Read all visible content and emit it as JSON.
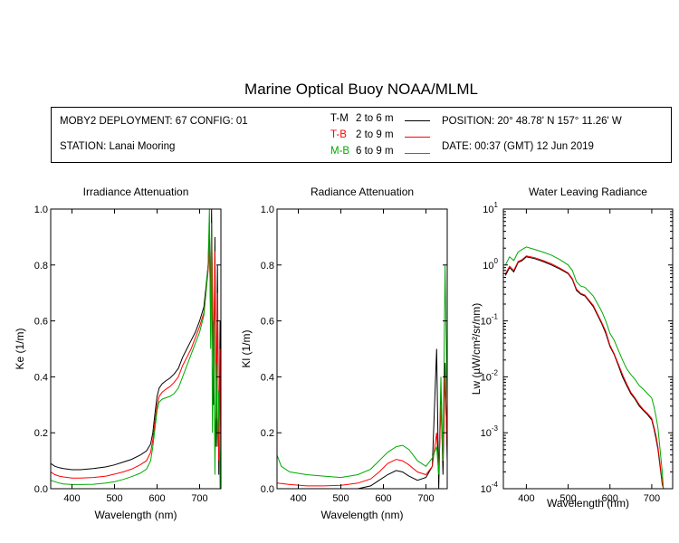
{
  "page": {
    "title": "Marine Optical Buoy NOAA/MLML"
  },
  "info": {
    "deployment": "MOBY2 DEPLOYMENT: 67 CONFIG: 01",
    "station": "STATION: Lanai Mooring",
    "position": "POSITION: 20° 48.78' N   157° 11.26' W",
    "date": "DATE: 00:37 (GMT) 12 Jun 2019",
    "legend": [
      {
        "label": "T-M",
        "range": "2 to 6  m",
        "color": "#000000"
      },
      {
        "label": "T-B",
        "range": "2 to 9  m",
        "color": "#ff0000"
      },
      {
        "label": "M-B",
        "range": "6 to 9  m",
        "color": "#00aa00"
      }
    ]
  },
  "colors": {
    "T-M": "#000000",
    "T-B": "#ff0000",
    "M-B": "#00aa00"
  },
  "chart_data": [
    {
      "type": "line",
      "title": "Irradiance Attenuation",
      "xlabel": "Wavelength (nm)",
      "ylabel": "Ke  (1/m)",
      "xlim": [
        350,
        750
      ],
      "ylim": [
        0,
        1.0
      ],
      "xticks": [
        400,
        500,
        600,
        700
      ],
      "xtick_labels": [
        "400",
        "500",
        "600",
        "700"
      ],
      "yticks": [
        0,
        0.2,
        0.4,
        0.6,
        0.8,
        1.0
      ],
      "ytick_labels": [
        "0.0",
        "0.2",
        "0.4",
        "0.6",
        "0.8",
        "1.0"
      ],
      "log": false,
      "series": [
        {
          "name": "T-M",
          "color": "#000000",
          "x": [
            350,
            360,
            370,
            380,
            400,
            420,
            450,
            480,
            500,
            520,
            540,
            560,
            575,
            585,
            590,
            595,
            600,
            605,
            612,
            620,
            630,
            640,
            650,
            660,
            670,
            680,
            690,
            700,
            710,
            715,
            720,
            723,
            726,
            728,
            730,
            733,
            736,
            739,
            742,
            745,
            748,
            750
          ],
          "y": [
            0.09,
            0.08,
            0.075,
            0.072,
            0.068,
            0.068,
            0.072,
            0.078,
            0.085,
            0.095,
            0.105,
            0.12,
            0.135,
            0.16,
            0.2,
            0.27,
            0.33,
            0.36,
            0.375,
            0.385,
            0.395,
            0.41,
            0.43,
            0.47,
            0.5,
            0.53,
            0.56,
            0.6,
            0.65,
            0.72,
            0.8,
            0.95,
            0.6,
            1.0,
            0.7,
            0.3,
            0.9,
            0.15,
            0.8,
            0.05,
            0.6,
            0.1
          ]
        },
        {
          "name": "T-B",
          "color": "#ff0000",
          "x": [
            350,
            360,
            370,
            380,
            400,
            420,
            450,
            480,
            500,
            520,
            540,
            560,
            575,
            585,
            590,
            595,
            600,
            605,
            612,
            620,
            630,
            640,
            650,
            660,
            670,
            680,
            690,
            700,
            710,
            715,
            720,
            723,
            726,
            728,
            730,
            733,
            736,
            739,
            742,
            745,
            748,
            750
          ],
          "y": [
            0.06,
            0.05,
            0.045,
            0.042,
            0.038,
            0.038,
            0.04,
            0.045,
            0.052,
            0.06,
            0.07,
            0.085,
            0.1,
            0.13,
            0.175,
            0.24,
            0.3,
            0.33,
            0.345,
            0.355,
            0.365,
            0.38,
            0.4,
            0.44,
            0.47,
            0.5,
            0.54,
            0.58,
            0.63,
            0.7,
            0.78,
            0.85,
            0.65,
            0.9,
            0.75,
            0.4,
            0.85,
            0.25,
            0.7,
            0.1,
            0.5,
            0.1
          ]
        },
        {
          "name": "M-B",
          "color": "#00aa00",
          "x": [
            350,
            360,
            370,
            380,
            400,
            420,
            450,
            480,
            500,
            520,
            540,
            560,
            575,
            585,
            590,
            595,
            600,
            605,
            612,
            620,
            630,
            640,
            650,
            660,
            670,
            680,
            690,
            700,
            710,
            715,
            720,
            723,
            726,
            728,
            730,
            733,
            736,
            739,
            742,
            745,
            748,
            750
          ],
          "y": [
            0.03,
            0.025,
            0.02,
            0.017,
            0.015,
            0.015,
            0.016,
            0.02,
            0.025,
            0.033,
            0.043,
            0.055,
            0.07,
            0.1,
            0.15,
            0.215,
            0.28,
            0.31,
            0.32,
            0.325,
            0.33,
            0.34,
            0.36,
            0.4,
            0.44,
            0.48,
            0.52,
            0.56,
            0.62,
            0.7,
            0.8,
            1.0,
            0.5,
            0.95,
            0.2,
            0.6,
            0.05,
            0.45,
            0.15,
            0.35,
            0.0,
            0.2
          ]
        }
      ]
    },
    {
      "type": "line",
      "title": "Radiance Attenuation",
      "xlabel": "Wavelength (nm)",
      "ylabel": "Kl  (1/m)",
      "xlim": [
        350,
        750
      ],
      "ylim": [
        0,
        1.0
      ],
      "xticks": [
        400,
        500,
        600,
        700
      ],
      "xtick_labels": [
        "400",
        "500",
        "600",
        "700"
      ],
      "yticks": [
        0,
        0.2,
        0.4,
        0.6,
        0.8,
        1.0
      ],
      "ytick_labels": [
        "0.0",
        "0.2",
        "0.4",
        "0.6",
        "0.8",
        "1.0"
      ],
      "log": false,
      "series": [
        {
          "name": "T-M",
          "color": "#000000",
          "x": [
            350,
            380,
            420,
            460,
            500,
            540,
            570,
            590,
            610,
            630,
            645,
            660,
            680,
            700,
            715,
            725,
            730,
            735,
            740,
            745,
            750
          ],
          "y": [
            0.0,
            0.0,
            0.0,
            0.0,
            0.0,
            0.0,
            0.01,
            0.03,
            0.05,
            0.065,
            0.06,
            0.045,
            0.03,
            0.04,
            0.08,
            0.5,
            0.0,
            0.35,
            0.05,
            0.45,
            0.1
          ]
        },
        {
          "name": "T-B",
          "color": "#ff0000",
          "x": [
            350,
            380,
            420,
            460,
            500,
            540,
            570,
            590,
            610,
            630,
            645,
            660,
            680,
            700,
            715,
            725,
            730,
            735,
            740,
            745,
            750
          ],
          "y": [
            0.02,
            0.015,
            0.01,
            0.01,
            0.012,
            0.02,
            0.035,
            0.06,
            0.09,
            0.105,
            0.1,
            0.085,
            0.06,
            0.05,
            0.08,
            0.2,
            0.05,
            0.3,
            0.1,
            0.4,
            0.15
          ]
        },
        {
          "name": "M-B",
          "color": "#00aa00",
          "x": [
            350,
            360,
            380,
            420,
            460,
            500,
            540,
            570,
            590,
            610,
            630,
            645,
            660,
            680,
            700,
            715,
            725,
            730,
            735,
            740,
            745,
            750
          ],
          "y": [
            0.12,
            0.08,
            0.06,
            0.05,
            0.045,
            0.04,
            0.05,
            0.07,
            0.1,
            0.13,
            0.15,
            0.155,
            0.14,
            0.1,
            0.08,
            0.11,
            0.15,
            0.05,
            0.4,
            0.1,
            0.8,
            0.3
          ]
        }
      ]
    },
    {
      "type": "line",
      "title": "Water Leaving Radiance",
      "xlabel": "Wavelength (nm)",
      "ylabel": "Lw  (µW/cm²/sr/nm)",
      "xlim": [
        345,
        750
      ],
      "ylim": [
        0.0001,
        10
      ],
      "log": true,
      "xticks": [
        400,
        500,
        600,
        700
      ],
      "xtick_labels": [
        "400",
        "500",
        "600",
        "700"
      ],
      "yticks": [
        0.0001,
        0.001,
        0.01,
        0.1,
        1,
        10
      ],
      "ytick_bases": [
        "10",
        "10",
        "10",
        "10",
        "10",
        "10"
      ],
      "ytick_exps": [
        "-4",
        "-3",
        "-2",
        "-1",
        "0",
        "1"
      ],
      "series": [
        {
          "name": "T-M",
          "color": "#000000",
          "x": [
            350,
            360,
            370,
            380,
            390,
            400,
            420,
            440,
            460,
            480,
            500,
            510,
            520,
            530,
            540,
            560,
            580,
            590,
            600,
            610,
            620,
            630,
            640,
            650,
            660,
            670,
            680,
            690,
            700,
            705,
            710,
            715,
            720,
            725,
            728
          ],
          "y": [
            0.65,
            0.9,
            0.75,
            1.1,
            1.2,
            1.4,
            1.3,
            1.15,
            1.0,
            0.85,
            0.7,
            0.55,
            0.35,
            0.3,
            0.28,
            0.18,
            0.09,
            0.06,
            0.035,
            0.025,
            0.016,
            0.01,
            0.007,
            0.005,
            0.004,
            0.003,
            0.0025,
            0.0021,
            0.0017,
            0.0012,
            0.0008,
            0.0005,
            0.00025,
            0.00012,
            0.0001
          ]
        },
        {
          "name": "T-B",
          "color": "#ff0000",
          "x": [
            350,
            360,
            370,
            380,
            390,
            400,
            420,
            440,
            460,
            480,
            500,
            510,
            520,
            530,
            540,
            560,
            580,
            590,
            600,
            610,
            620,
            630,
            640,
            650,
            660,
            670,
            680,
            690,
            700,
            705,
            710,
            715,
            720,
            725,
            728
          ],
          "y": [
            0.7,
            0.95,
            0.8,
            1.15,
            1.25,
            1.45,
            1.35,
            1.2,
            1.05,
            0.88,
            0.72,
            0.57,
            0.37,
            0.31,
            0.29,
            0.19,
            0.095,
            0.065,
            0.037,
            0.026,
            0.017,
            0.011,
            0.0075,
            0.0053,
            0.0042,
            0.0032,
            0.0026,
            0.0022,
            0.0018,
            0.0013,
            0.0009,
            0.00055,
            0.00028,
            0.00013,
            0.0001
          ]
        },
        {
          "name": "M-B",
          "color": "#00aa00",
          "x": [
            350,
            360,
            370,
            380,
            390,
            400,
            420,
            440,
            460,
            480,
            500,
            510,
            520,
            530,
            540,
            560,
            580,
            590,
            600,
            610,
            620,
            630,
            640,
            650,
            660,
            670,
            680,
            690,
            700,
            705,
            710,
            715,
            720,
            725,
            728
          ],
          "y": [
            1.0,
            1.4,
            1.2,
            1.7,
            1.9,
            2.1,
            1.9,
            1.7,
            1.5,
            1.25,
            1.0,
            0.8,
            0.5,
            0.42,
            0.4,
            0.28,
            0.15,
            0.1,
            0.06,
            0.045,
            0.03,
            0.02,
            0.014,
            0.011,
            0.009,
            0.007,
            0.006,
            0.005,
            0.0042,
            0.003,
            0.002,
            0.0012,
            0.0005,
            0.0002,
            0.0001
          ]
        }
      ]
    }
  ]
}
